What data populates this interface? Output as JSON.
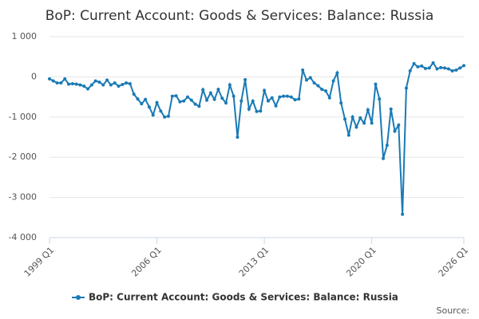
{
  "chart_data": {
    "type": "line",
    "title": "BoP: Current Account: Goods & Services: Balance: Russia",
    "categories": [
      "1999 Q1",
      null,
      null,
      null,
      null,
      null,
      null,
      null,
      null,
      null,
      null,
      null,
      null,
      null,
      null,
      null,
      null,
      null,
      null,
      null,
      null,
      null,
      null,
      null,
      null,
      null,
      null,
      null,
      "2006 Q1",
      null,
      null,
      null,
      null,
      null,
      null,
      null,
      null,
      null,
      null,
      null,
      null,
      null,
      null,
      null,
      null,
      null,
      null,
      null,
      null,
      null,
      null,
      null,
      null,
      null,
      null,
      null,
      "2013 Q1",
      null,
      null,
      null,
      null,
      null,
      null,
      null,
      null,
      null,
      null,
      null,
      null,
      null,
      null,
      null,
      null,
      null,
      null,
      null,
      null,
      null,
      null,
      null,
      null,
      null,
      null,
      null,
      "2020 Q1",
      null,
      null,
      null,
      null,
      null,
      null,
      null,
      null,
      null,
      null,
      null,
      null,
      null,
      null,
      null,
      null,
      null,
      null,
      null,
      null,
      null,
      null,
      null,
      "2026 Q1"
    ],
    "series": [
      {
        "name": "BoP: Current Account: Goods & Services: Balance: Russia",
        "color": "#1a7ab5",
        "values": [
          -50,
          -100,
          -150,
          -150,
          -50,
          -180,
          -170,
          -180,
          -200,
          -230,
          -300,
          -200,
          -100,
          -130,
          -200,
          -80,
          -200,
          -150,
          -230,
          -190,
          -150,
          -170,
          -430,
          -550,
          -670,
          -560,
          -750,
          -950,
          -640,
          -850,
          -1000,
          -980,
          -480,
          -470,
          -620,
          -600,
          -500,
          -580,
          -680,
          -730,
          -320,
          -580,
          -400,
          -560,
          -310,
          -530,
          -650,
          -200,
          -480,
          -1500,
          -600,
          -70,
          -800,
          -600,
          -860,
          -850,
          -340,
          -600,
          -520,
          -720,
          -500,
          -480,
          -480,
          -500,
          -570,
          -550,
          170,
          -80,
          -20,
          -150,
          -220,
          -310,
          -350,
          -520,
          -100,
          100,
          -650,
          -1050,
          -1450,
          -1000,
          -1250,
          -1020,
          -1150,
          -820,
          -1150,
          -180,
          -550,
          -2030,
          -1700,
          -800,
          -1350,
          -1200,
          -3420,
          -280,
          150,
          330,
          250,
          270,
          210,
          220,
          350,
          200,
          230,
          220,
          200,
          150,
          170,
          220,
          280
        ]
      }
    ],
    "ylim": [
      -4000,
      1000
    ],
    "yticks": [
      {
        "value": 1000,
        "label": "1 000"
      },
      0,
      {
        "value": -1000,
        "label": "-1 000"
      },
      {
        "value": -2000,
        "label": "-2 000"
      },
      {
        "value": -3000,
        "label": "-3 000"
      },
      {
        "value": -4000,
        "label": "-4 000"
      }
    ],
    "grid": true,
    "source": "Source:"
  }
}
